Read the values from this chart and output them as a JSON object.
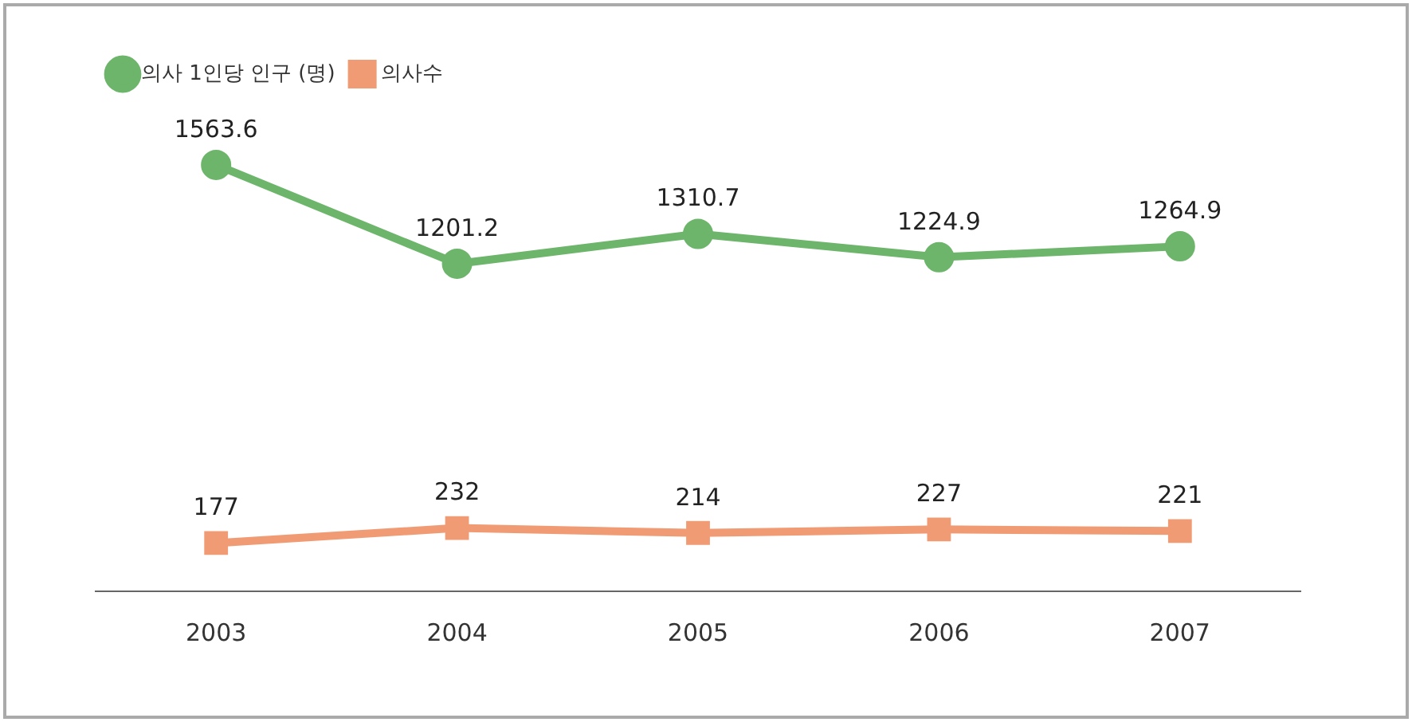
{
  "chart_data": {
    "type": "line",
    "categories": [
      "2003",
      "2004",
      "2005",
      "2006",
      "2007"
    ],
    "series": [
      {
        "name": "의사 1인당 인구 (명)",
        "color": "#6cb56a",
        "marker": "circle",
        "values": [
          1563.6,
          1201.2,
          1310.7,
          1224.9,
          1264.9
        ]
      },
      {
        "name": "의사수",
        "color": "#f19b74",
        "marker": "square",
        "values": [
          177,
          232,
          214,
          227,
          221
        ]
      }
    ],
    "tick_labels": "x",
    "data_labels": true,
    "legend": "top left",
    "grid": false
  }
}
